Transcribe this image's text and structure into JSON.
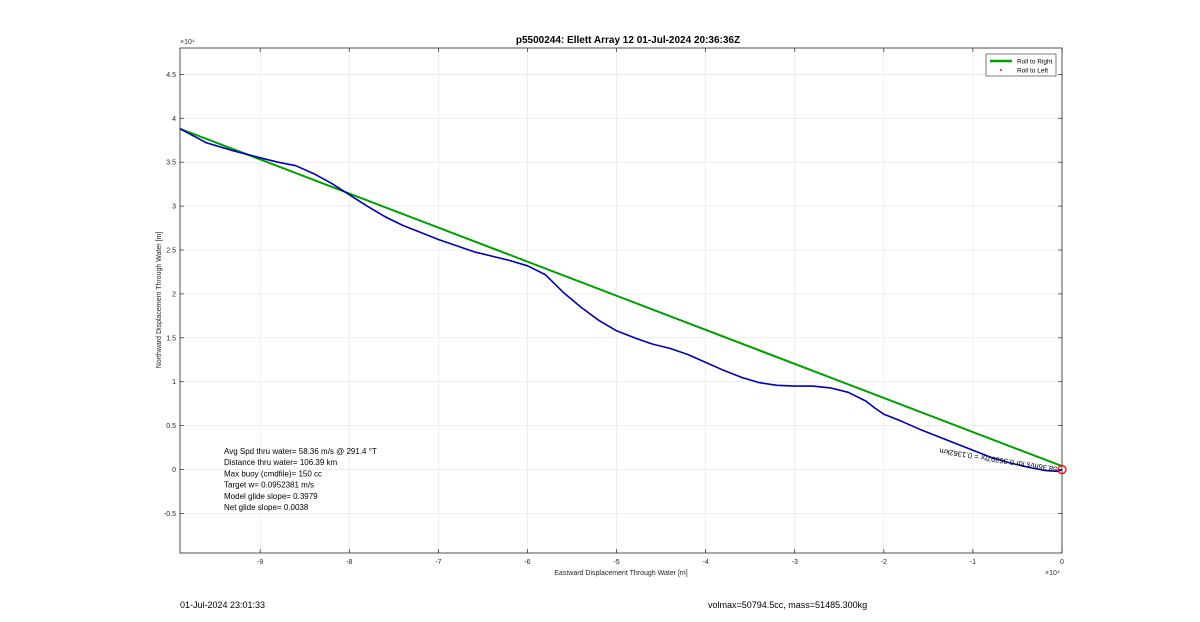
{
  "chart_data": {
    "type": "line",
    "title": "p5500244: Ellett Array 12 01-Jul-2024 20:36:36Z",
    "xlabel": "Eastward Displacement Through Water [m]",
    "ylabel": "Northward Displacement Through Water [m]",
    "x_exponent_label": "×10⁴",
    "y_exponent_label": "×10⁴",
    "xlim": [
      -9.9,
      0
    ],
    "ylim": [
      -0.95,
      4.8
    ],
    "x_ticks": [
      -9,
      -8,
      -7,
      -6,
      -5,
      -4,
      -3,
      -2,
      -1,
      0
    ],
    "x_tick_labels": [
      "-9",
      "-8",
      "-7",
      "-6",
      "-5",
      "-4",
      "-3",
      "-2",
      "-1",
      "0"
    ],
    "y_ticks": [
      -0.5,
      0,
      0.5,
      1,
      1.5,
      2,
      2.5,
      3,
      3.5,
      4,
      4.5
    ],
    "y_tick_labels": [
      "-0.5",
      "0",
      "0.5",
      "1",
      "1.5",
      "2",
      "2.5",
      "3",
      "3.5",
      "4",
      "4.5"
    ],
    "grid": true,
    "legend": {
      "position": "top-right",
      "entries": [
        {
          "name": "Roll to Right",
          "color": "#00a000",
          "style": "line"
        },
        {
          "name": "Roll to Left",
          "color": "#ff0000",
          "style": "marker"
        }
      ]
    },
    "series": [
      {
        "name": "Roll to Right",
        "color": "#00a000",
        "x": [
          -9.9,
          0
        ],
        "y": [
          3.88,
          0.04
        ]
      },
      {
        "color": "#0000b0",
        "x": [
          -9.9,
          -9.6,
          -9.3,
          -9.0,
          -8.8,
          -8.6,
          -8.4,
          -8.2,
          -8.0,
          -7.8,
          -7.6,
          -7.4,
          -7.2,
          -7.0,
          -6.8,
          -6.6,
          -6.4,
          -6.2,
          -6.0,
          -5.8,
          -5.6,
          -5.4,
          -5.2,
          -5.0,
          -4.8,
          -4.6,
          -4.4,
          -4.2,
          -4.0,
          -3.8,
          -3.6,
          -3.4,
          -3.2,
          -3.0,
          -2.8,
          -2.6,
          -2.4,
          -2.2,
          -2.1,
          -2.0,
          -1.8,
          -1.6,
          -1.4,
          -1.2,
          -1.0,
          -0.8,
          -0.6,
          -0.4,
          -0.2,
          -0.05,
          0
        ],
        "y": [
          3.88,
          3.72,
          3.63,
          3.55,
          3.5,
          3.46,
          3.37,
          3.26,
          3.13,
          3.0,
          2.88,
          2.78,
          2.7,
          2.62,
          2.55,
          2.48,
          2.43,
          2.38,
          2.32,
          2.22,
          2.02,
          1.85,
          1.7,
          1.58,
          1.5,
          1.43,
          1.38,
          1.31,
          1.22,
          1.13,
          1.05,
          0.99,
          0.96,
          0.95,
          0.95,
          0.93,
          0.88,
          0.78,
          0.7,
          0.63,
          0.55,
          0.46,
          0.38,
          0.3,
          0.22,
          0.14,
          0.08,
          0.03,
          -0.01,
          -0.02,
          0.0
        ]
      }
    ],
    "end_marker": {
      "x": 0,
      "y": 0,
      "color": "#ff0000"
    },
    "annotations": [
      {
        "text": "Avg Spd thru water= 58.36 m/s @ 291.4 °T"
      },
      {
        "text": "Distance thru water= 106.39 km"
      },
      {
        "text": "Max buoy (cmdfile)= 150 cc"
      },
      {
        "text": "Target w= 0.0952381 m/s"
      },
      {
        "text": "Model glide slope= 0.3979"
      },
      {
        "text": "Net glide slope= 0.0038"
      }
    ],
    "rotated_label": {
      "text": "58.36m/s for 0.36397hr = 0.1362km",
      "x": -0.05,
      "y": 0.03
    }
  },
  "footer": {
    "date": "01-Jul-2024 23:01:33",
    "mass_info": "volmax=50794.5cc, mass=51485.300kg"
  }
}
